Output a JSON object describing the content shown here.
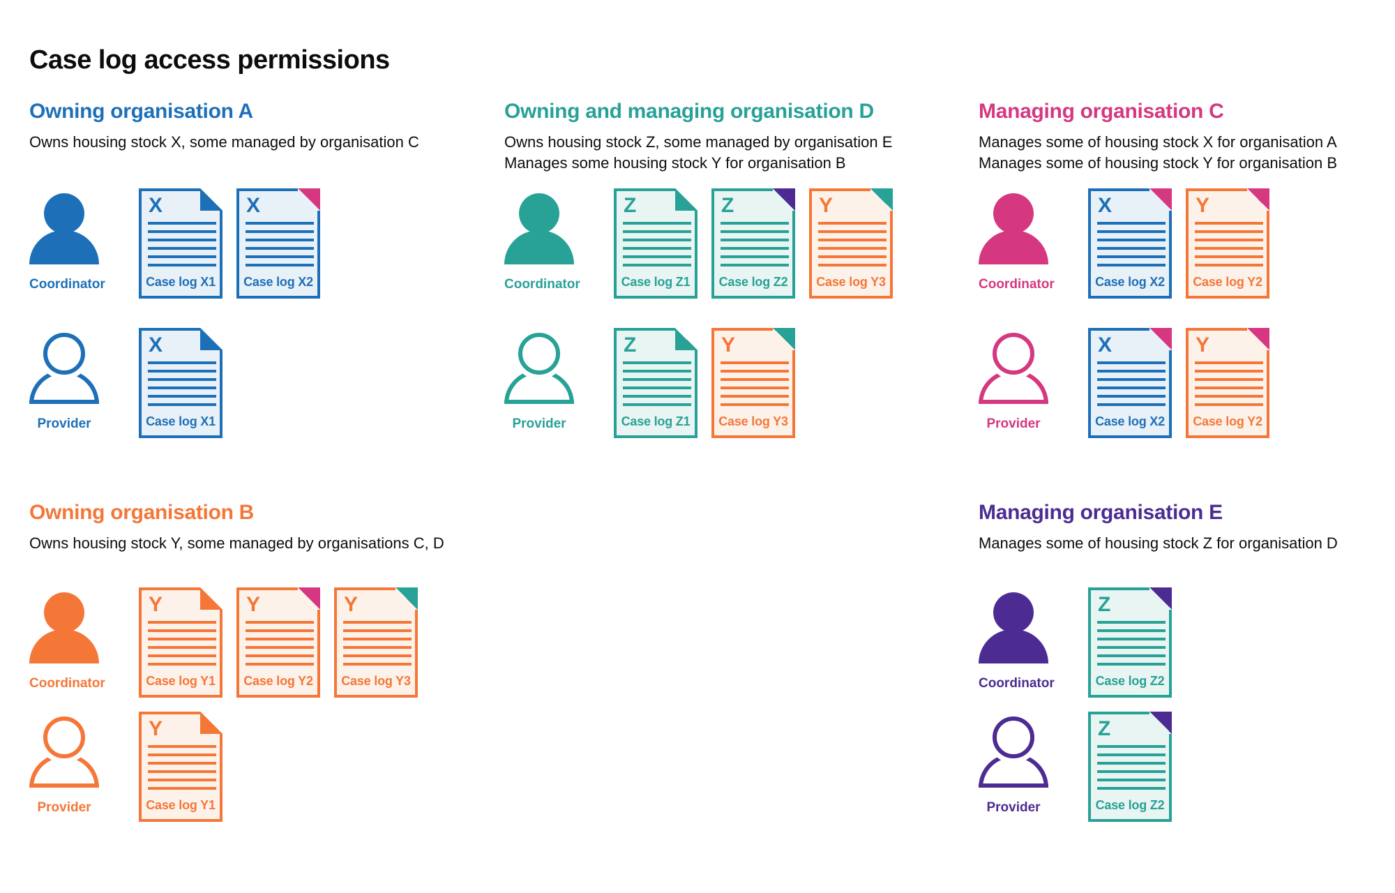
{
  "page": {
    "title": "Case log access permissions"
  },
  "colors": {
    "blue": {
      "main": "#1d70b8",
      "tint": "#e9f1f8"
    },
    "teal": {
      "main": "#28a197",
      "tint": "#e9f5f2"
    },
    "pink": {
      "main": "#d53880",
      "tint": "#fbeaf2"
    },
    "orange": {
      "main": "#f47738",
      "tint": "#fdf2ea"
    },
    "purple": {
      "main": "#4c2c92",
      "tint": "#ece8f4"
    },
    "ink": {
      "main": "#0b0c0c",
      "tint": "#ffffff"
    }
  },
  "icons": {
    "person": "person-silhouette-icon",
    "document": "case-log-document-with-folded-corner-icon"
  },
  "sections": [
    {
      "id": "owning-organisation-a",
      "title": "Owning organisation A",
      "color": "blue",
      "grid": {
        "col": 0,
        "row": 0
      },
      "description": [
        "Owns housing stock X, some managed by organisation C"
      ],
      "rows": [
        {
          "role": "Coordinator",
          "person_style": "filled",
          "docs": [
            {
              "letter": "X",
              "label": "Case log X1",
              "doc": "blue",
              "fold": "blue",
              "fold_style": "cut"
            },
            {
              "letter": "X",
              "label": "Case log X2",
              "doc": "blue",
              "fold": "pink",
              "fold_style": "overlay"
            }
          ]
        },
        {
          "role": "Provider",
          "person_style": "outline",
          "docs": [
            {
              "letter": "X",
              "label": "Case log X1",
              "doc": "blue",
              "fold": "blue",
              "fold_style": "cut"
            }
          ]
        }
      ]
    },
    {
      "id": "owning-and-managing-organisation-d",
      "title": "Owning and managing organisation D",
      "color": "teal",
      "grid": {
        "col": 1,
        "row": 0
      },
      "description": [
        "Owns housing stock Z, some managed by organisation E",
        "Manages some housing stock Y for organisation B"
      ],
      "rows": [
        {
          "role": "Coordinator",
          "person_style": "filled",
          "docs": [
            {
              "letter": "Z",
              "label": "Case log Z1",
              "doc": "teal",
              "fold": "teal",
              "fold_style": "cut"
            },
            {
              "letter": "Z",
              "label": "Case log Z2",
              "doc": "teal",
              "fold": "purple",
              "fold_style": "overlay"
            },
            {
              "letter": "Y",
              "label": "Case log Y3",
              "doc": "orange",
              "fold": "teal",
              "fold_style": "overlay"
            }
          ]
        },
        {
          "role": "Provider",
          "person_style": "outline",
          "docs": [
            {
              "letter": "Z",
              "label": "Case log Z1",
              "doc": "teal",
              "fold": "teal",
              "fold_style": "cut"
            },
            {
              "letter": "Y",
              "label": "Case log Y3",
              "doc": "orange",
              "fold": "teal",
              "fold_style": "overlay"
            }
          ]
        }
      ]
    },
    {
      "id": "managing-organisation-c",
      "title": "Managing organisation C",
      "color": "pink",
      "grid": {
        "col": 2,
        "row": 0
      },
      "description": [
        "Manages some of housing stock X for organisation A",
        "Manages some of housing stock Y for organisation B"
      ],
      "rows": [
        {
          "role": "Coordinator",
          "person_style": "filled",
          "docs": [
            {
              "letter": "X",
              "label": "Case log X2",
              "doc": "blue",
              "fold": "pink",
              "fold_style": "overlay"
            },
            {
              "letter": "Y",
              "label": "Case log Y2",
              "doc": "orange",
              "fold": "pink",
              "fold_style": "overlay"
            }
          ]
        },
        {
          "role": "Provider",
          "person_style": "outline",
          "docs": [
            {
              "letter": "X",
              "label": "Case log X2",
              "doc": "blue",
              "fold": "pink",
              "fold_style": "overlay"
            },
            {
              "letter": "Y",
              "label": "Case log Y2",
              "doc": "orange",
              "fold": "pink",
              "fold_style": "overlay"
            }
          ]
        }
      ]
    },
    {
      "id": "owning-organisation-b",
      "title": "Owning organisation B",
      "color": "orange",
      "grid": {
        "col": 0,
        "row": 1
      },
      "description": [
        "Owns housing stock Y, some managed by organisations C, D"
      ],
      "rows": [
        {
          "role": "Coordinator",
          "person_style": "filled",
          "docs": [
            {
              "letter": "Y",
              "label": "Case log Y1",
              "doc": "orange",
              "fold": "orange",
              "fold_style": "cut"
            },
            {
              "letter": "Y",
              "label": "Case log Y2",
              "doc": "orange",
              "fold": "pink",
              "fold_style": "overlay"
            },
            {
              "letter": "Y",
              "label": "Case log Y3",
              "doc": "orange",
              "fold": "teal",
              "fold_style": "overlay"
            }
          ]
        },
        {
          "role": "Provider",
          "person_style": "outline",
          "docs": [
            {
              "letter": "Y",
              "label": "Case log Y1",
              "doc": "orange",
              "fold": "orange",
              "fold_style": "cut"
            }
          ]
        }
      ]
    },
    {
      "id": "managing-organisation-e",
      "title": "Managing organisation E",
      "color": "purple",
      "grid": {
        "col": 2,
        "row": 1
      },
      "description": [
        "Manages some of housing stock Z for organisation D"
      ],
      "rows": [
        {
          "role": "Coordinator",
          "person_style": "filled",
          "docs": [
            {
              "letter": "Z",
              "label": "Case log Z2",
              "doc": "teal",
              "fold": "purple",
              "fold_style": "overlay"
            }
          ]
        },
        {
          "role": "Provider",
          "person_style": "outline",
          "docs": [
            {
              "letter": "Z",
              "label": "Case log Z2",
              "doc": "teal",
              "fold": "purple",
              "fold_style": "overlay"
            }
          ]
        }
      ]
    }
  ]
}
